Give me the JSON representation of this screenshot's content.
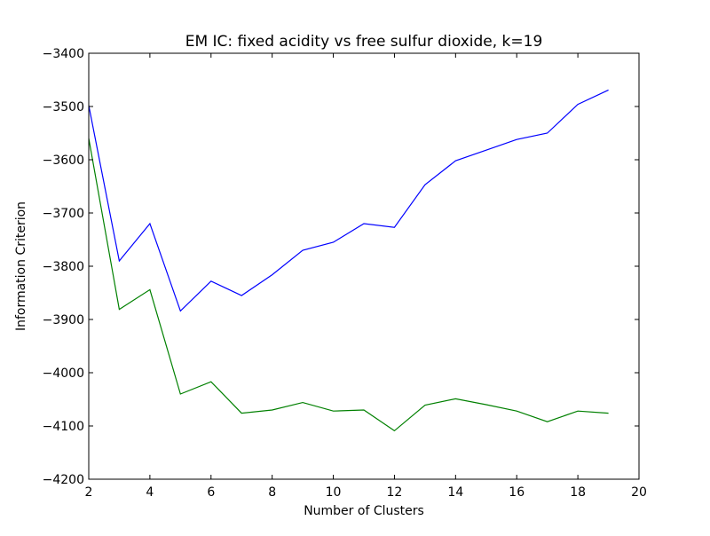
{
  "chart_data": {
    "type": "line",
    "title": "EM IC: fixed acidity vs free sulfur dioxide, k=19",
    "xlabel": "Number of Clusters",
    "ylabel": "Information Criterion",
    "xlim": [
      2,
      20
    ],
    "ylim": [
      -4200,
      -3400
    ],
    "xticks": [
      2,
      4,
      6,
      8,
      10,
      12,
      14,
      16,
      18,
      20
    ],
    "yticks": [
      -4200,
      -4100,
      -4000,
      -3900,
      -3800,
      -3700,
      -3600,
      -3500,
      -3400
    ],
    "xtick_labels": [
      "2",
      "4",
      "6",
      "8",
      "10",
      "12",
      "14",
      "16",
      "18",
      "20"
    ],
    "ytick_labels": [
      "−4200",
      "−4100",
      "−4000",
      "−3900",
      "−3800",
      "−3700",
      "−3600",
      "−3500",
      "−3400"
    ],
    "grid": false,
    "x": [
      2,
      3,
      4,
      5,
      6,
      7,
      8,
      9,
      10,
      11,
      12,
      13,
      14,
      15,
      16,
      17,
      18,
      19
    ],
    "series": [
      {
        "color": "#0000ff",
        "values": [
          -3498,
          -3790,
          -3720,
          -3884,
          -3828,
          -3855,
          -3816,
          -3770,
          -3755,
          -3720,
          -3727,
          -3647,
          -3602,
          -3582,
          -3562,
          -3550,
          -3496,
          -3469
        ]
      },
      {
        "color": "#008000",
        "values": [
          -3560,
          -3881,
          -3844,
          -4040,
          -4017,
          -4076,
          -4070,
          -4056,
          -4072,
          -4070,
          -4109,
          -4061,
          -4049,
          -4060,
          -4072,
          -4092,
          -4072,
          -4076
        ]
      }
    ]
  }
}
